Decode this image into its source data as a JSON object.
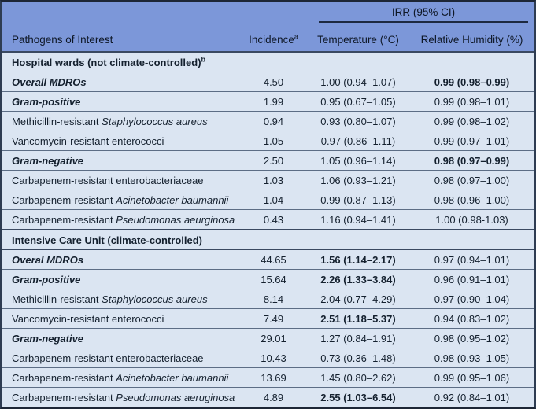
{
  "colors": {
    "header_background": "#7c97d9",
    "row_background": "#dbe5f2",
    "text": "#14202e",
    "outer_frame": "#1d2636",
    "inner_rule": "#5c6d85"
  },
  "table": {
    "header": {
      "irr_span_label": "IRR (95% CI)",
      "col_pathogens": "Pathogens of Interest",
      "col_incidence": "Incidence",
      "col_incidence_sup": "a",
      "col_temperature": "Temperature (°C)",
      "col_humidity": "Relative Humidity (%)"
    },
    "sections": [
      {
        "title": "Hospital wards (not climate-controlled)",
        "title_sup": "b",
        "rows": [
          {
            "label_plain": "Overall MDROs",
            "label_italic": "",
            "strong": true,
            "incidence": "4.50",
            "temperature": "1.00 (0.94–1.07)",
            "temperature_bold": false,
            "humidity": "0.99 (0.98–0.99)",
            "humidity_bold": true
          },
          {
            "label_plain": "Gram-positive",
            "label_italic": "",
            "strong": true,
            "incidence": "1.99",
            "temperature": "0.95 (0.67–1.05)",
            "temperature_bold": false,
            "humidity": "0.99 (0.98–1.01)",
            "humidity_bold": false
          },
          {
            "label_plain": "Methicillin-resistant ",
            "label_italic": "Staphylococcus aureus",
            "strong": false,
            "incidence": "0.94",
            "temperature": "0.93 (0.80–1.07)",
            "temperature_bold": false,
            "humidity": "0.99 (0.98–1.02)",
            "humidity_bold": false
          },
          {
            "label_plain": "Vancomycin-resistant enterococci",
            "label_italic": "",
            "strong": false,
            "incidence": "1.05",
            "temperature": "0.97 (0.86–1.11)",
            "temperature_bold": false,
            "humidity": "0.99 (0.97–1.01)",
            "humidity_bold": false
          },
          {
            "label_plain": "Gram-negative",
            "label_italic": "",
            "strong": true,
            "incidence": "2.50",
            "temperature": "1.05 (0.96–1.14)",
            "temperature_bold": false,
            "humidity": "0.98 (0.97–0.99)",
            "humidity_bold": true
          },
          {
            "label_plain": "Carbapenem-resistant enterobacteriaceae",
            "label_italic": "",
            "strong": false,
            "incidence": "1.03",
            "temperature": "1.06 (0.93–1.21)",
            "temperature_bold": false,
            "humidity": "0.98 (0.97–1.00)",
            "humidity_bold": false
          },
          {
            "label_plain": "Carbapenem-resistant ",
            "label_italic": "Acinetobacter baumannii",
            "strong": false,
            "incidence": "1.04",
            "temperature": "0.99 (0.87–1.13)",
            "temperature_bold": false,
            "humidity": "0.98 (0.96–1.00)",
            "humidity_bold": false
          },
          {
            "label_plain": "Carbapenem-resistant ",
            "label_italic": "Pseudomonas aeurginosa",
            "strong": false,
            "incidence": "0.43",
            "temperature": "1.16 (0.94–1.41)",
            "temperature_bold": false,
            "humidity": "1.00 (0.98-1.03)",
            "humidity_bold": false
          }
        ]
      },
      {
        "title": "Intensive Care Unit (climate-controlled)",
        "title_sup": "",
        "rows": [
          {
            "label_plain": "Overal MDROs",
            "label_italic": "",
            "strong": true,
            "incidence": "44.65",
            "temperature": "1.56 (1.14–2.17)",
            "temperature_bold": true,
            "humidity": "0.97 (0.94–1.01)",
            "humidity_bold": false
          },
          {
            "label_plain": "Gram-positive",
            "label_italic": "",
            "strong": true,
            "incidence": "15.64",
            "temperature": "2.26 (1.33–3.84)",
            "temperature_bold": true,
            "humidity": "0.96 (0.91–1.01)",
            "humidity_bold": false
          },
          {
            "label_plain": "Methicillin-resistant ",
            "label_italic": "Staphylococcus aureus",
            "strong": false,
            "incidence": "8.14",
            "temperature": "2.04 (0.77–4.29)",
            "temperature_bold": false,
            "humidity": "0.97 (0.90–1.04)",
            "humidity_bold": false
          },
          {
            "label_plain": "Vancomycin-resistant enterococci",
            "label_italic": "",
            "strong": false,
            "incidence": "7.49",
            "temperature": "2.51 (1.18–5.37)",
            "temperature_bold": true,
            "humidity": "0.94 (0.83–1.02)",
            "humidity_bold": false
          },
          {
            "label_plain": "Gram-negative",
            "label_italic": "",
            "strong": true,
            "incidence": "29.01",
            "temperature": "1.27 (0.84–1.91)",
            "temperature_bold": false,
            "humidity": "0.98 (0.95–1.02)",
            "humidity_bold": false
          },
          {
            "label_plain": "Carbapenem-resistant enterobacteriaceae",
            "label_italic": "",
            "strong": false,
            "incidence": "10.43",
            "temperature": "0.73 (0.36–1.48)",
            "temperature_bold": false,
            "humidity": "0.98 (0.93–1.05)",
            "humidity_bold": false
          },
          {
            "label_plain": "Carbapenem-resistant ",
            "label_italic": "Acinetobacter baumannii",
            "strong": false,
            "incidence": "13.69",
            "temperature": "1.45 (0.80–2.62)",
            "temperature_bold": false,
            "humidity": "0.99 (0.95–1.06)",
            "humidity_bold": false
          },
          {
            "label_plain": "Carbapenem-resistant ",
            "label_italic": "Pseudomonas aeruginosa",
            "strong": false,
            "incidence": "4.89",
            "temperature": "2.55 (1.03–6.54)",
            "temperature_bold": true,
            "humidity": "0.92 (0.84–1.01)",
            "humidity_bold": false
          }
        ]
      }
    ]
  }
}
